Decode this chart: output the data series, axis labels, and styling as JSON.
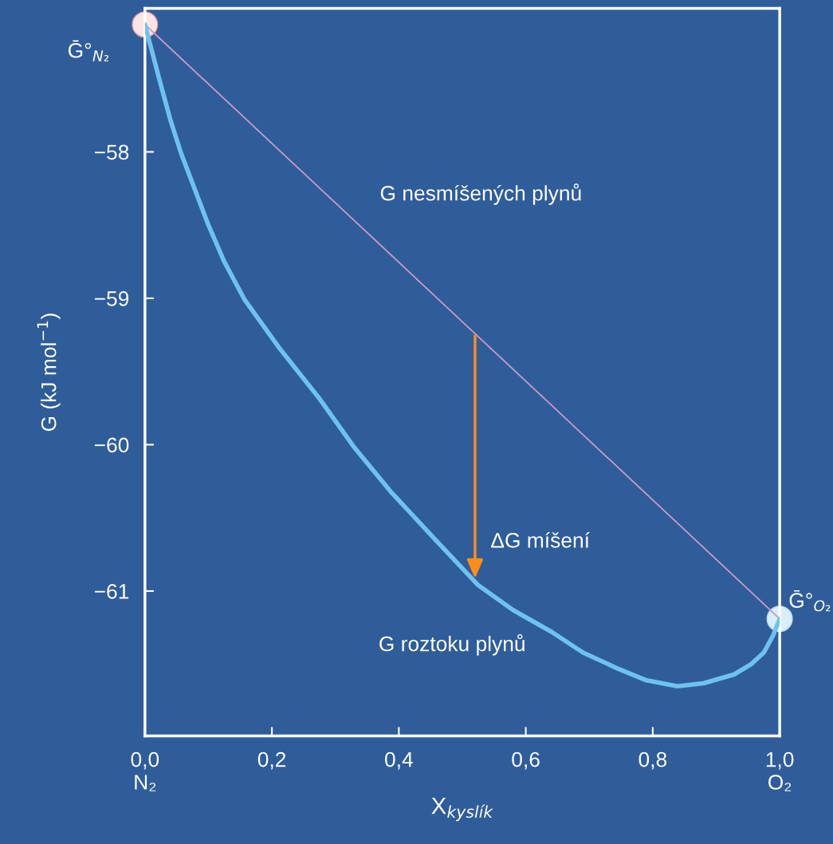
{
  "chart_data": {
    "type": "line",
    "xlabel": "X$_{kyslík}$",
    "ylabel": "G (kJ mol$^{−1}$)",
    "xlim": [
      0,
      1
    ],
    "ylim": [
      -61.99,
      -57.02
    ],
    "xticks": [
      {
        "value": 0,
        "label": "0,0\nN₂"
      },
      {
        "value": 0.2,
        "label": "0,2"
      },
      {
        "value": 0.4,
        "label": "0,4"
      },
      {
        "value": 0.6,
        "label": "0,6"
      },
      {
        "value": 0.8,
        "label": "0,8"
      },
      {
        "value": 1,
        "label": "1,0\nO₂"
      }
    ],
    "yticks": [
      {
        "value": -58,
        "label": "−58"
      },
      {
        "value": -59,
        "label": "−59"
      },
      {
        "value": -60,
        "label": "−60"
      },
      {
        "value": -61,
        "label": "−61"
      }
    ],
    "grid": false,
    "legend": false,
    "marker": "none",
    "line_style": "solid",
    "series": [
      {
        "name": "G nesmíšených plynů",
        "color": "#c99ac4",
        "x": [
          0,
          1
        ],
        "values": [
          -57.13,
          -61.19
        ]
      },
      {
        "name": "G roztoku plynů",
        "color": "#6ec3ee",
        "x": [
          0,
          0.023,
          0.04,
          0.057,
          0.1,
          0.125,
          0.157,
          0.21,
          0.274,
          0.33,
          0.389,
          0.46,
          0.525,
          0.58,
          0.641,
          0.69,
          0.745,
          0.79,
          0.839,
          0.88,
          0.928,
          0.955,
          0.975,
          0.99,
          1
        ],
        "values": [
          -57.13,
          -57.51,
          -57.78,
          -58.01,
          -58.5,
          -58.75,
          -59.01,
          -59.33,
          -59.68,
          -60.02,
          -60.33,
          -60.66,
          -60.96,
          -61.13,
          -61.28,
          -61.42,
          -61.53,
          -61.61,
          -61.65,
          -61.63,
          -61.57,
          -61.5,
          -61.42,
          -61.3,
          -61.19
        ]
      },
      {
        "type": "scatter",
        "marker": "circle",
        "color": "#fde4e4",
        "x": [
          0
        ],
        "values": [
          -57.13
        ]
      },
      {
        "type": "scatter",
        "marker": "circle",
        "color": "#d8eefa",
        "x": [
          1
        ],
        "values": [
          -61.19
        ]
      }
    ],
    "annotations": [
      {
        "text": "Ḡ°$_{N₂}$",
        "x": 0,
        "y": -57.13
      },
      {
        "text": "Ḡ°$_{O₂}$",
        "x": 1,
        "y": -61.19
      },
      {
        "text": "ΔG míšení",
        "x": 0.52,
        "y": -60.93
      }
    ]
  }
}
